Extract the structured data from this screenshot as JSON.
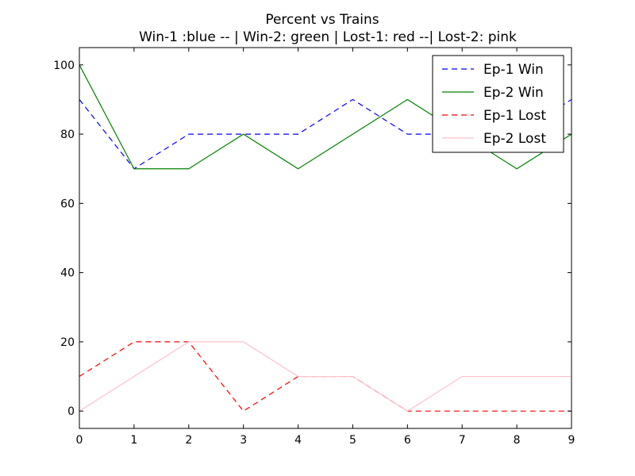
{
  "chart_data": {
    "type": "line",
    "title": "Percent vs Trains",
    "subtitle": "Win-1 :blue -- | Win-2: green | Lost-1: red --| Lost-2: pink",
    "xlabel": "",
    "ylabel": "",
    "x": [
      0,
      1,
      2,
      3,
      4,
      5,
      6,
      7,
      8,
      9
    ],
    "xlim": [
      0,
      9
    ],
    "ylim": [
      -5,
      105
    ],
    "x_ticks": [
      "0",
      "1",
      "2",
      "3",
      "4",
      "5",
      "6",
      "7",
      "8",
      "9"
    ],
    "y_ticks": [
      "0",
      "20",
      "40",
      "60",
      "80",
      "100"
    ],
    "grid": false,
    "legend_position": "top-right",
    "series": [
      {
        "name": "Ep-1 Win",
        "values": [
          90,
          70,
          80,
          80,
          80,
          90,
          80,
          80,
          80,
          90
        ],
        "color": "#0000ff",
        "dash": true
      },
      {
        "name": "Ep-2 Win",
        "values": [
          100,
          70,
          70,
          80,
          70,
          80,
          90,
          80,
          70,
          80
        ],
        "color": "#008000",
        "dash": false
      },
      {
        "name": "Ep-1 Lost",
        "values": [
          10,
          20,
          20,
          0,
          10,
          10,
          0,
          0,
          0,
          0
        ],
        "color": "#ff0000",
        "dash": true
      },
      {
        "name": "Ep-2 Lost",
        "values": [
          0,
          10,
          20,
          20,
          10,
          10,
          0,
          10,
          10,
          10
        ],
        "color": "#ffc0cb",
        "dash": false
      }
    ]
  }
}
